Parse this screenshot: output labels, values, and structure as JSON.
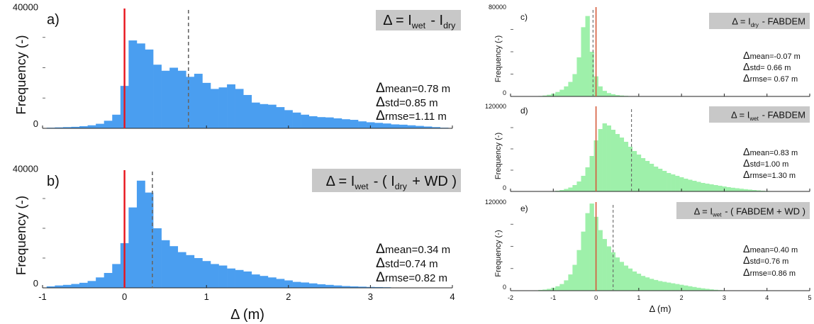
{
  "chart_data": [
    {
      "panel": "a)",
      "type": "bar",
      "formula": {
        "prefix": "Δ = I",
        "sub1": "wet",
        "mid": " - I",
        "sub2": "dry",
        "suffix": ""
      },
      "ylabel": "Frequency (-)",
      "xlabel": "",
      "xlim": [
        -1,
        4
      ],
      "ylim": [
        0,
        40000
      ],
      "ytick_labels": [
        "40000",
        "0"
      ],
      "bin_start": -0.95,
      "bin_width": 0.1,
      "values": [
        200,
        300,
        400,
        500,
        700,
        1000,
        1500,
        2500,
        4500,
        14000,
        29000,
        28000,
        26000,
        21000,
        19000,
        20000,
        19000,
        17000,
        18000,
        15000,
        13000,
        13500,
        14500,
        13000,
        11000,
        8500,
        8000,
        7800,
        7000,
        6000,
        5200,
        4500,
        4000,
        3700,
        3600,
        3300,
        3000,
        2800,
        2300,
        2000,
        1800,
        1600,
        1300,
        1200,
        1000,
        800,
        600,
        400,
        200
      ],
      "bar_color": "#4a9ef0",
      "zero_line": 0,
      "mean_line": 0.78,
      "stats": {
        "mean": "=0.78  m",
        "std": "=0.85  m",
        "rmse": "=1.11  m"
      }
    },
    {
      "panel": "b)",
      "type": "bar",
      "formula": {
        "prefix": "Δ = I",
        "sub1": "wet",
        "mid": " - ( I",
        "sub2": "dry",
        "suffix": " + WD )"
      },
      "ylabel": "Frequency (-)",
      "xlabel": "Δ (m)",
      "xlim": [
        -1,
        4
      ],
      "ylim": [
        0,
        40000
      ],
      "ytick_labels": [
        "40000",
        "0"
      ],
      "xtick_labels": [
        "-1",
        "0",
        "1",
        "2",
        "3",
        "4"
      ],
      "bin_start": -0.95,
      "bin_width": 0.1,
      "values": [
        500,
        800,
        1000,
        1300,
        1700,
        2300,
        3500,
        5000,
        8000,
        15000,
        27000,
        36000,
        32000,
        20000,
        16000,
        14000,
        12000,
        11000,
        10000,
        9000,
        8000,
        7500,
        6500,
        6000,
        5500,
        4500,
        4000,
        3500,
        3000,
        2500,
        2000,
        1800,
        1500,
        1200,
        1000,
        800,
        600,
        500,
        400,
        300,
        250,
        200
      ],
      "bar_color": "#4a9ef0",
      "zero_line": 0,
      "mean_line": 0.34,
      "stats": {
        "mean": "=0.34  m",
        "std": "=0.74  m",
        "rmse": "=0.82  m"
      }
    },
    {
      "panel": "c)",
      "type": "bar",
      "formula": {
        "prefix": "Δ = I",
        "sub1": "dry",
        "mid": " - FABDEM",
        "sub2": "",
        "suffix": ""
      },
      "ylabel": "Frequency (-)",
      "xlabel": "",
      "xlim": [
        -2,
        5
      ],
      "ylim": [
        0,
        80000
      ],
      "ytick_labels": [
        "80000",
        "0"
      ],
      "bin_start": -1.45,
      "bin_width": 0.1,
      "values": [
        200,
        400,
        800,
        1500,
        2500,
        4000,
        6000,
        9000,
        13000,
        20000,
        35000,
        62000,
        72000,
        40000,
        18000,
        9000,
        5000,
        3000,
        2000,
        1200,
        800,
        500,
        300,
        200,
        100
      ],
      "bar_color": "#9ef0aa",
      "zero_line": 0,
      "mean_line": -0.07,
      "stats": {
        "mean": "=-0.07  m",
        "std": "=  0.66  m",
        "rmse": "= 0.67  m"
      }
    },
    {
      "panel": "d)",
      "type": "bar",
      "formula": {
        "prefix": "Δ = I",
        "sub1": "wet",
        "mid": " - FABDEM",
        "sub2": "",
        "suffix": ""
      },
      "ylabel": "Frequency (-)",
      "xlabel": "",
      "xlim": [
        -2,
        5
      ],
      "ylim": [
        0,
        120000
      ],
      "ytick_labels": [
        "120000",
        "0"
      ],
      "bin_start": -0.95,
      "bin_width": 0.1,
      "values": [
        1000,
        2000,
        3500,
        5500,
        9000,
        14000,
        22000,
        34000,
        50000,
        72000,
        88000,
        96000,
        93000,
        87000,
        81000,
        76000,
        70000,
        63000,
        57000,
        52000,
        47000,
        43000,
        39000,
        35000,
        32000,
        29000,
        26000,
        24000,
        22000,
        20000,
        18000,
        16500,
        15000,
        13500,
        12000,
        11000,
        10000,
        9000,
        8000,
        7000,
        6000,
        5200,
        4500,
        3800,
        3200,
        2600,
        2000,
        1500,
        1000,
        700,
        500,
        300
      ],
      "bar_color": "#9ef0aa",
      "zero_line": 0,
      "mean_line": 0.83,
      "stats": {
        "mean": "=0.83  m",
        "std": "=1.00  m",
        "rmse": "=1.30  m"
      }
    },
    {
      "panel": "e)",
      "type": "bar",
      "formula": {
        "prefix": "Δ = I",
        "sub1": "wet",
        "mid": " - ( FABDEM + WD )",
        "sub2": "",
        "suffix": ""
      },
      "ylabel": "Frequency (-)",
      "xlabel": "Δ (m)",
      "xlim": [
        -2,
        5
      ],
      "ylim": [
        0,
        120000
      ],
      "ytick_labels": [
        "120000",
        "0"
      ],
      "xtick_labels": [
        "-2",
        "-1",
        "0",
        "1",
        "2",
        "3",
        "4",
        "5"
      ],
      "bin_start": -1.45,
      "bin_width": 0.1,
      "values": [
        500,
        1000,
        1500,
        2500,
        4000,
        6000,
        9000,
        14000,
        22000,
        35000,
        55000,
        80000,
        105000,
        118000,
        100000,
        82000,
        70000,
        60000,
        52000,
        45000,
        39000,
        34000,
        30000,
        26000,
        23000,
        20000,
        18000,
        16000,
        14500,
        13000,
        12000,
        11000,
        10000,
        9000,
        8000,
        7000,
        6000,
        5000,
        4000,
        3200,
        2500,
        1800,
        1200,
        800,
        500,
        300,
        200
      ],
      "bar_color": "#9ef0aa",
      "zero_line": 0,
      "mean_line": 0.4,
      "stats": {
        "mean": "=0.40  m",
        "std": "=0.76  m",
        "rmse": "=0.86  m"
      }
    }
  ]
}
